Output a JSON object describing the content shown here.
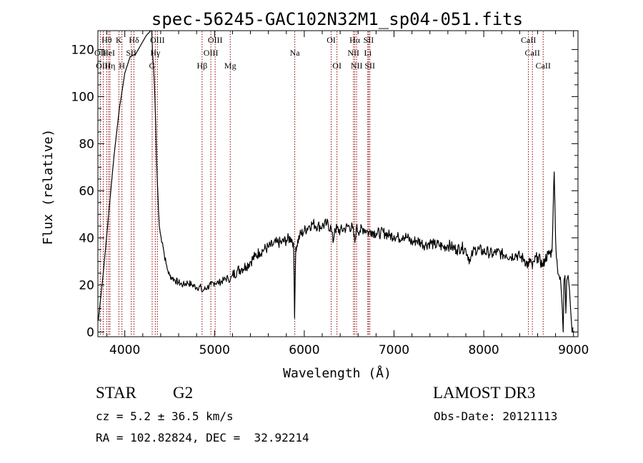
{
  "chart_data": {
    "type": "line",
    "title": "spec-56245-GAC102N32M1_sp04-051.fits",
    "xlabel": "Wavelength (Å)",
    "ylabel": "Flux (relative)",
    "xlim": [
      3700,
      9050
    ],
    "ylim": [
      -2,
      128
    ],
    "xticks": [
      4000,
      5000,
      6000,
      7000,
      8000,
      9000
    ],
    "yticks": [
      0,
      20,
      40,
      60,
      80,
      100,
      120
    ],
    "grid": false,
    "series": [
      {
        "name": "flux",
        "points": [
          [
            3705,
            5
          ],
          [
            3760,
            25
          ],
          [
            3820,
            50
          ],
          [
            3880,
            75
          ],
          [
            3940,
            95
          ],
          [
            4000,
            110
          ],
          [
            4060,
            117
          ],
          [
            4120,
            118
          ],
          [
            4180,
            122
          ],
          [
            4240,
            126
          ],
          [
            4290,
            128
          ],
          [
            4300,
            128
          ],
          [
            4310,
            118
          ],
          [
            4320,
            113
          ],
          [
            4330,
            105
          ],
          [
            4345,
            88
          ],
          [
            4355,
            72
          ],
          [
            4365,
            62
          ],
          [
            4375,
            52
          ],
          [
            4385,
            45
          ],
          [
            4395,
            42
          ],
          [
            4405,
            40
          ],
          [
            4420,
            38
          ],
          [
            4440,
            33
          ],
          [
            4460,
            29
          ],
          [
            4480,
            26
          ],
          [
            4500,
            24
          ],
          [
            4530,
            23
          ],
          [
            4560,
            22
          ],
          [
            4600,
            21
          ],
          [
            4650,
            20
          ],
          [
            4700,
            21
          ],
          [
            4750,
            20
          ],
          [
            4800,
            19
          ],
          [
            4850,
            19
          ],
          [
            4861,
            17
          ],
          [
            4880,
            18
          ],
          [
            4920,
            19
          ],
          [
            4960,
            20
          ],
          [
            5000,
            21
          ],
          [
            5050,
            21
          ],
          [
            5100,
            22
          ],
          [
            5150,
            23
          ],
          [
            5175,
            22
          ],
          [
            5200,
            24
          ],
          [
            5250,
            26
          ],
          [
            5300,
            27
          ],
          [
            5350,
            28
          ],
          [
            5400,
            30
          ],
          [
            5450,
            32
          ],
          [
            5500,
            34
          ],
          [
            5550,
            35
          ],
          [
            5600,
            36
          ],
          [
            5650,
            37
          ],
          [
            5700,
            38
          ],
          [
            5750,
            38
          ],
          [
            5800,
            39
          ],
          [
            5850,
            40
          ],
          [
            5880,
            38
          ],
          [
            5892,
            6
          ],
          [
            5905,
            36
          ],
          [
            5950,
            41
          ],
          [
            6000,
            43
          ],
          [
            6050,
            45
          ],
          [
            6100,
            46
          ],
          [
            6150,
            45
          ],
          [
            6200,
            45
          ],
          [
            6250,
            46
          ],
          [
            6300,
            44
          ],
          [
            6320,
            38
          ],
          [
            6340,
            44
          ],
          [
            6400,
            43
          ],
          [
            6450,
            44
          ],
          [
            6500,
            45
          ],
          [
            6540,
            44
          ],
          [
            6563,
            38
          ],
          [
            6580,
            44
          ],
          [
            6620,
            43
          ],
          [
            6660,
            44
          ],
          [
            6700,
            43
          ],
          [
            6720,
            42
          ],
          [
            6750,
            43
          ],
          [
            6800,
            42
          ],
          [
            6850,
            42
          ],
          [
            6900,
            42
          ],
          [
            6950,
            41
          ],
          [
            7000,
            41
          ],
          [
            7050,
            40
          ],
          [
            7100,
            41
          ],
          [
            7150,
            40
          ],
          [
            7200,
            38
          ],
          [
            7250,
            39
          ],
          [
            7300,
            38
          ],
          [
            7350,
            37
          ],
          [
            7400,
            38
          ],
          [
            7450,
            37
          ],
          [
            7500,
            37
          ],
          [
            7550,
            36
          ],
          [
            7600,
            37
          ],
          [
            7650,
            36
          ],
          [
            7700,
            35
          ],
          [
            7750,
            36
          ],
          [
            7800,
            35
          ],
          [
            7850,
            30
          ],
          [
            7880,
            34
          ],
          [
            7900,
            35
          ],
          [
            7950,
            35
          ],
          [
            8000,
            34
          ],
          [
            8050,
            34
          ],
          [
            8100,
            33
          ],
          [
            8150,
            34
          ],
          [
            8200,
            33
          ],
          [
            8250,
            33
          ],
          [
            8300,
            32
          ],
          [
            8350,
            33
          ],
          [
            8400,
            32
          ],
          [
            8450,
            31
          ],
          [
            8498,
            28
          ],
          [
            8520,
            31
          ],
          [
            8542,
            27
          ],
          [
            8560,
            30
          ],
          [
            8600,
            32
          ],
          [
            8662,
            28
          ],
          [
            8680,
            31
          ],
          [
            8720,
            33
          ],
          [
            8760,
            34
          ],
          [
            8775,
            55
          ],
          [
            8785,
            68
          ],
          [
            8795,
            50
          ],
          [
            8805,
            35
          ],
          [
            8820,
            28
          ],
          [
            8840,
            24
          ],
          [
            8860,
            20
          ],
          [
            8875,
            10
          ],
          [
            8885,
            0
          ],
          [
            8895,
            22
          ],
          [
            8905,
            24
          ],
          [
            8915,
            8
          ],
          [
            8925,
            22
          ],
          [
            8940,
            24
          ],
          [
            8955,
            18
          ],
          [
            8970,
            8
          ],
          [
            8985,
            0
          ],
          [
            8995,
            2
          ]
        ]
      }
    ],
    "lines": [
      {
        "label": "Hθ",
        "wavelength": 3798,
        "row": 0
      },
      {
        "label": "OII",
        "wavelength": 3727,
        "row": 1
      },
      {
        "label": "HeI",
        "wavelength": 3820,
        "row": 1
      },
      {
        "label": "OIII",
        "wavelength": 3760,
        "row": 2
      },
      {
        "label": "Hη",
        "wavelength": 3835,
        "row": 2
      },
      {
        "label": "K",
        "wavelength": 3934,
        "row": 0
      },
      {
        "label": "H",
        "wavelength": 3968,
        "row": 2
      },
      {
        "label": "Hδ",
        "wavelength": 4102,
        "row": 0
      },
      {
        "label": "SII",
        "wavelength": 4072,
        "row": 1
      },
      {
        "label": "OIII",
        "wavelength": 4363,
        "row": 0
      },
      {
        "label": "Hγ",
        "wavelength": 4340,
        "row": 1
      },
      {
        "label": "G",
        "wavelength": 4305,
        "row": 2
      },
      {
        "label": "OIII",
        "wavelength": 5007,
        "row": 0
      },
      {
        "label": "OIII",
        "wavelength": 4959,
        "row": 1
      },
      {
        "label": "Hβ",
        "wavelength": 4861,
        "row": 2
      },
      {
        "label": "Mg",
        "wavelength": 5175,
        "row": 2
      },
      {
        "label": "Na",
        "wavelength": 5894,
        "row": 1
      },
      {
        "label": "OI",
        "wavelength": 6300,
        "row": 0
      },
      {
        "label": "OI",
        "wavelength": 6364,
        "row": 2
      },
      {
        "label": "Hα",
        "wavelength": 6563,
        "row": 0
      },
      {
        "label": "SII",
        "wavelength": 6717,
        "row": 0
      },
      {
        "label": "NII",
        "wavelength": 6548,
        "row": 1
      },
      {
        "label": "Li",
        "wavelength": 6708,
        "row": 1
      },
      {
        "label": "NII",
        "wavelength": 6583,
        "row": 2
      },
      {
        "label": "SII",
        "wavelength": 6731,
        "row": 2
      },
      {
        "label": "CaII",
        "wavelength": 8498,
        "row": 0
      },
      {
        "label": "CaII",
        "wavelength": 8542,
        "row": 1
      },
      {
        "label": "CaII",
        "wavelength": 8662,
        "row": 2
      }
    ],
    "colors": {
      "spectrum": "#000000",
      "line_marker": "#8b0000",
      "axes": "#000000"
    }
  },
  "info": {
    "object_type": "STAR",
    "subclass": "G2",
    "survey": "LAMOST DR3",
    "redshift": "cz = 5.2 ± 36.5 km/s",
    "obs_date": "Obs-Date: 20121113",
    "coords": "RA = 102.82824, DEC =  32.92214"
  }
}
